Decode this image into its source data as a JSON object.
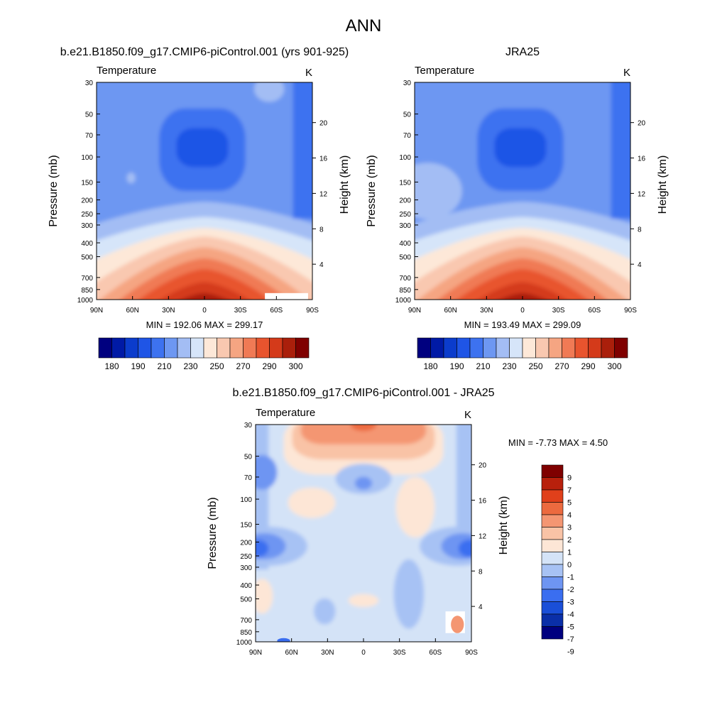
{
  "figure_title": "ANN",
  "chart_data": [
    {
      "type": "heatmap",
      "title": "b.e21.B1850.f09_g17.CMIP6-piControl.001 (yrs 901-925)",
      "subtitle_left": "Temperature",
      "subtitle_right": "K",
      "ylabel": "Pressure (mb)",
      "ylabel_right": "Height (km)",
      "x_ticks": [
        "90N",
        "60N",
        "30N",
        "0",
        "30S",
        "60S",
        "90S"
      ],
      "y_ticks": [
        "30",
        "50",
        "70",
        "100",
        "150",
        "200",
        "250",
        "300",
        "400",
        "500",
        "700",
        "850",
        "1000"
      ],
      "y_ticks_right": [
        "20",
        "16",
        "12",
        "8",
        "4"
      ],
      "min": 192.06,
      "max": 299.17,
      "stats_text": "MIN = 192.06  MAX = 299.17",
      "colorbar_labels": [
        "180",
        "190",
        "210",
        "230",
        "250",
        "270",
        "290",
        "300"
      ],
      "colorbar_levels": [
        175,
        180,
        185,
        190,
        200,
        210,
        220,
        230,
        240,
        250,
        260,
        270,
        280,
        290,
        295,
        300
      ]
    },
    {
      "type": "heatmap",
      "title": "JRA25",
      "subtitle_left": "Temperature",
      "subtitle_right": "K",
      "ylabel": "Pressure (mb)",
      "ylabel_right": "Height (km)",
      "x_ticks": [
        "90N",
        "60N",
        "30N",
        "0",
        "30S",
        "60S",
        "90S"
      ],
      "y_ticks": [
        "30",
        "50",
        "70",
        "100",
        "150",
        "200",
        "250",
        "300",
        "400",
        "500",
        "700",
        "850",
        "1000"
      ],
      "y_ticks_right": [
        "20",
        "16",
        "12",
        "8",
        "4"
      ],
      "min": 193.49,
      "max": 299.09,
      "stats_text": "MIN = 193.49  MAX = 299.09",
      "colorbar_labels": [
        "180",
        "190",
        "210",
        "230",
        "250",
        "270",
        "290",
        "300"
      ],
      "colorbar_levels": [
        175,
        180,
        185,
        190,
        200,
        210,
        220,
        230,
        240,
        250,
        260,
        270,
        280,
        290,
        295,
        300
      ]
    },
    {
      "type": "heatmap",
      "title": "b.e21.B1850.f09_g17.CMIP6-piControl.001 - JRA25",
      "subtitle_left": "Temperature",
      "subtitle_right": "K",
      "ylabel": "Pressure (mb)",
      "ylabel_right": "Height (km)",
      "x_ticks": [
        "90N",
        "60N",
        "30N",
        "0",
        "30S",
        "60S",
        "90S"
      ],
      "y_ticks": [
        "30",
        "50",
        "70",
        "100",
        "150",
        "200",
        "250",
        "300",
        "400",
        "500",
        "700",
        "850",
        "1000"
      ],
      "y_ticks_right": [
        "20",
        "16",
        "12",
        "8",
        "4"
      ],
      "min": -7.73,
      "max": 4.5,
      "stats_text": "MIN =  -7.73  MAX =   4.50",
      "colorbar_labels": [
        "9",
        "7",
        "5",
        "4",
        "3",
        "2",
        "1",
        "0",
        "-1",
        "-2",
        "-3",
        "-4",
        "-5",
        "-7",
        "-9"
      ],
      "colorbar_levels": [
        -9,
        -7,
        -5,
        -4,
        -3,
        -2,
        -1,
        0,
        1,
        2,
        3,
        4,
        5,
        7,
        9
      ]
    }
  ],
  "colors": {
    "abs_palette": [
      "#00007f",
      "#001aa6",
      "#0b3ccc",
      "#1f55e6",
      "#3d72f0",
      "#6d97f2",
      "#a3bdf4",
      "#d6e5f9",
      "#fde8d8",
      "#f9c8b0",
      "#f5a582",
      "#f07a55",
      "#e8542e",
      "#d43a1a",
      "#aa1f0b",
      "#7f0000"
    ],
    "diff_palette": [
      "#00007f",
      "#0a2fa8",
      "#1a4fd8",
      "#3a6ef0",
      "#6e95f2",
      "#a7c2f4",
      "#d4e3f7",
      "#fde6d6",
      "#f9c3a6",
      "#f49672",
      "#ec6a3f",
      "#e0401b",
      "#b8200c",
      "#7f0000"
    ]
  }
}
